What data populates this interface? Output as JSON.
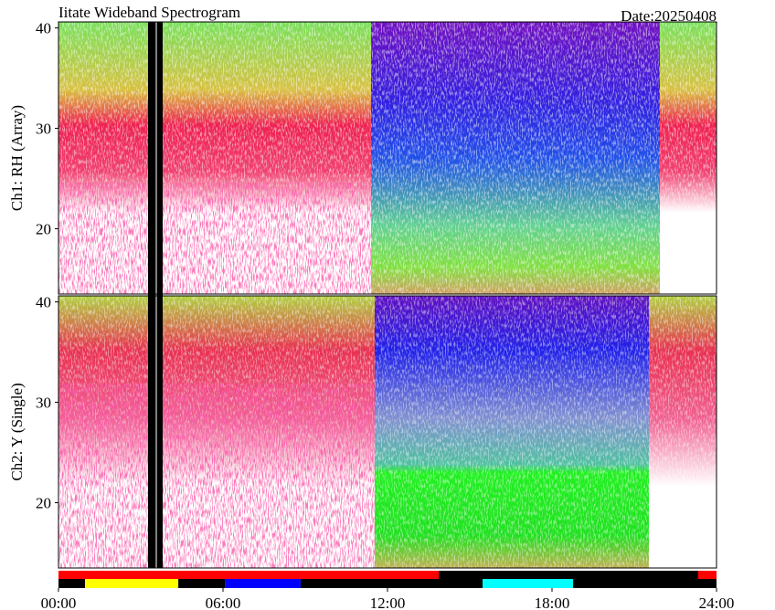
{
  "chart_data": {
    "type": "spectrogram",
    "title": "Iitate Wideband Spectrogram",
    "date": "Date:20250408",
    "xlim": [
      0,
      24
    ],
    "xticks": [
      {
        "value": 0,
        "label": "00:00"
      },
      {
        "value": 6,
        "label": "06:00"
      },
      {
        "value": 12,
        "label": "12:00"
      },
      {
        "value": 18,
        "label": "18:00"
      },
      {
        "value": 24,
        "label": "24:00"
      }
    ],
    "panels": [
      {
        "ylabel": "Ch1: RH (Array)",
        "ylim": [
          13.5,
          40.6
        ],
        "yticks": [
          20,
          30,
          40
        ]
      },
      {
        "ylabel": "Ch2: Y (Single)",
        "ylim": [
          13.5,
          40.6
        ],
        "yticks": [
          20,
          30,
          40
        ]
      }
    ],
    "status_rows": [
      [
        {
          "start": 0,
          "end": 13.87,
          "color": "#ff0000"
        },
        {
          "start": 13.87,
          "end": 23.33,
          "color": "#000000"
        },
        {
          "start": 23.33,
          "end": 24,
          "color": "#ff0000"
        }
      ],
      [
        {
          "start": 0,
          "end": 0.97,
          "color": "#000000"
        },
        {
          "start": 0.97,
          "end": 4.37,
          "color": "#ffff00"
        },
        {
          "start": 4.37,
          "end": 6.07,
          "color": "#000000"
        },
        {
          "start": 6.07,
          "end": 8.83,
          "color": "#0000ff"
        },
        {
          "start": 8.83,
          "end": 15.47,
          "color": "#000000"
        },
        {
          "start": 15.47,
          "end": 18.77,
          "color": "#00ffff"
        },
        {
          "start": 18.77,
          "end": 24,
          "color": "#000000"
        }
      ]
    ]
  }
}
